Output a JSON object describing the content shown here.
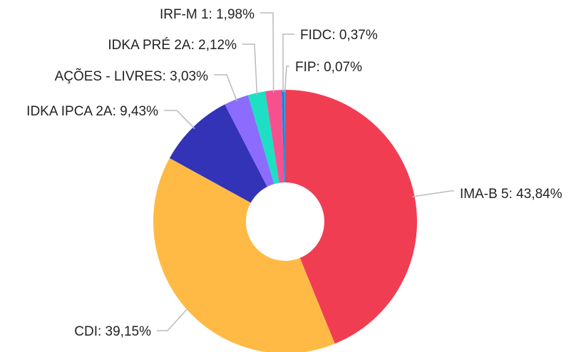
{
  "chart_data": {
    "type": "donut",
    "values": [
      43.84,
      39.15,
      9.43,
      3.03,
      2.12,
      1.98,
      0.37,
      0.07
    ],
    "value_labels": [
      "IMA-B 5: 43,84%",
      "CDI: 39,15%",
      "IDKA IPCA 2A: 9,43%",
      "AÇÕES - LIVRES: 3,03%",
      "IDKA PRÉ 2A: 2,12%",
      "IRF-M 1: 1,98%",
      "FIDC: 0,37%",
      "FIP: 0,07%"
    ],
    "colors": [
      "#f03d52",
      "#ffba45",
      "#3333b8",
      "#8c6cff",
      "#1ddfc4",
      "#f7508e",
      "#2b7fd6",
      "#1ab0f0"
    ]
  }
}
